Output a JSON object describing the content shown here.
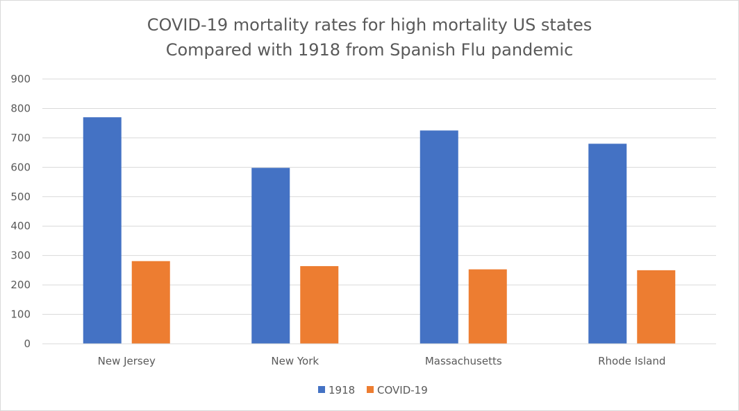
{
  "chart_data": {
    "type": "bar",
    "title": "COVID-19 mortality rates for high mortality US states",
    "subtitle": "Compared with 1918 from Spanish Flu pandemic",
    "xlabel": "",
    "ylabel": "",
    "categories": [
      "New Jersey",
      "New York",
      "Massachusetts",
      "Rhode Island"
    ],
    "series": [
      {
        "name": "1918",
        "color": "#4472c4",
        "values": [
          770,
          598,
          725,
          680
        ]
      },
      {
        "name": "COVID-19",
        "color": "#ed7d31",
        "values": [
          281,
          264,
          253,
          250
        ]
      }
    ],
    "ylim": [
      0,
      900
    ],
    "yticks": [
      "0",
      "100",
      "200",
      "300",
      "400",
      "500",
      "600",
      "700",
      "800",
      "900"
    ],
    "grid": true,
    "legend_position": "bottom"
  }
}
